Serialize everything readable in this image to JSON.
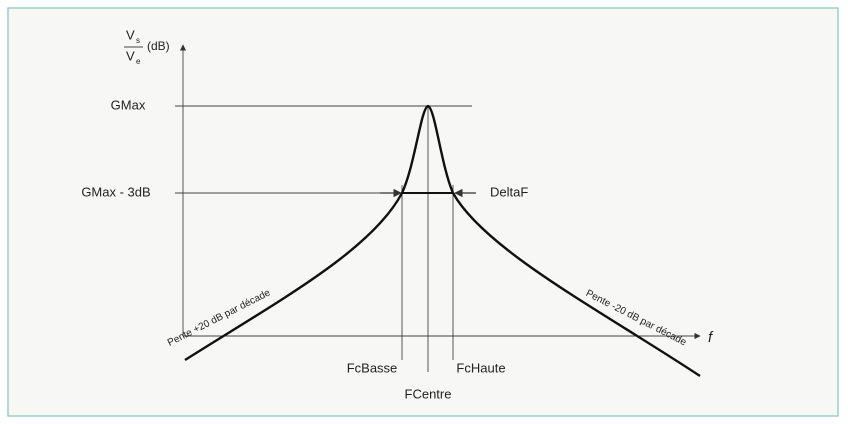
{
  "y_axis": {
    "numerator": "V",
    "numerator_sub": "s",
    "denominator": "V",
    "denominator_sub": "e",
    "unit": "(dB)"
  },
  "x_axis": {
    "label": "f"
  },
  "levels": {
    "max": "GMax",
    "minus3": "GMax - 3dB"
  },
  "bandwidth": "DeltaF",
  "frequencies": {
    "low": "FcBasse",
    "high": "FcHaute",
    "center": "FCentre"
  },
  "slopes": {
    "left": "Pente +20 dB par décade",
    "right": "Pente -20 dB par décade"
  }
}
